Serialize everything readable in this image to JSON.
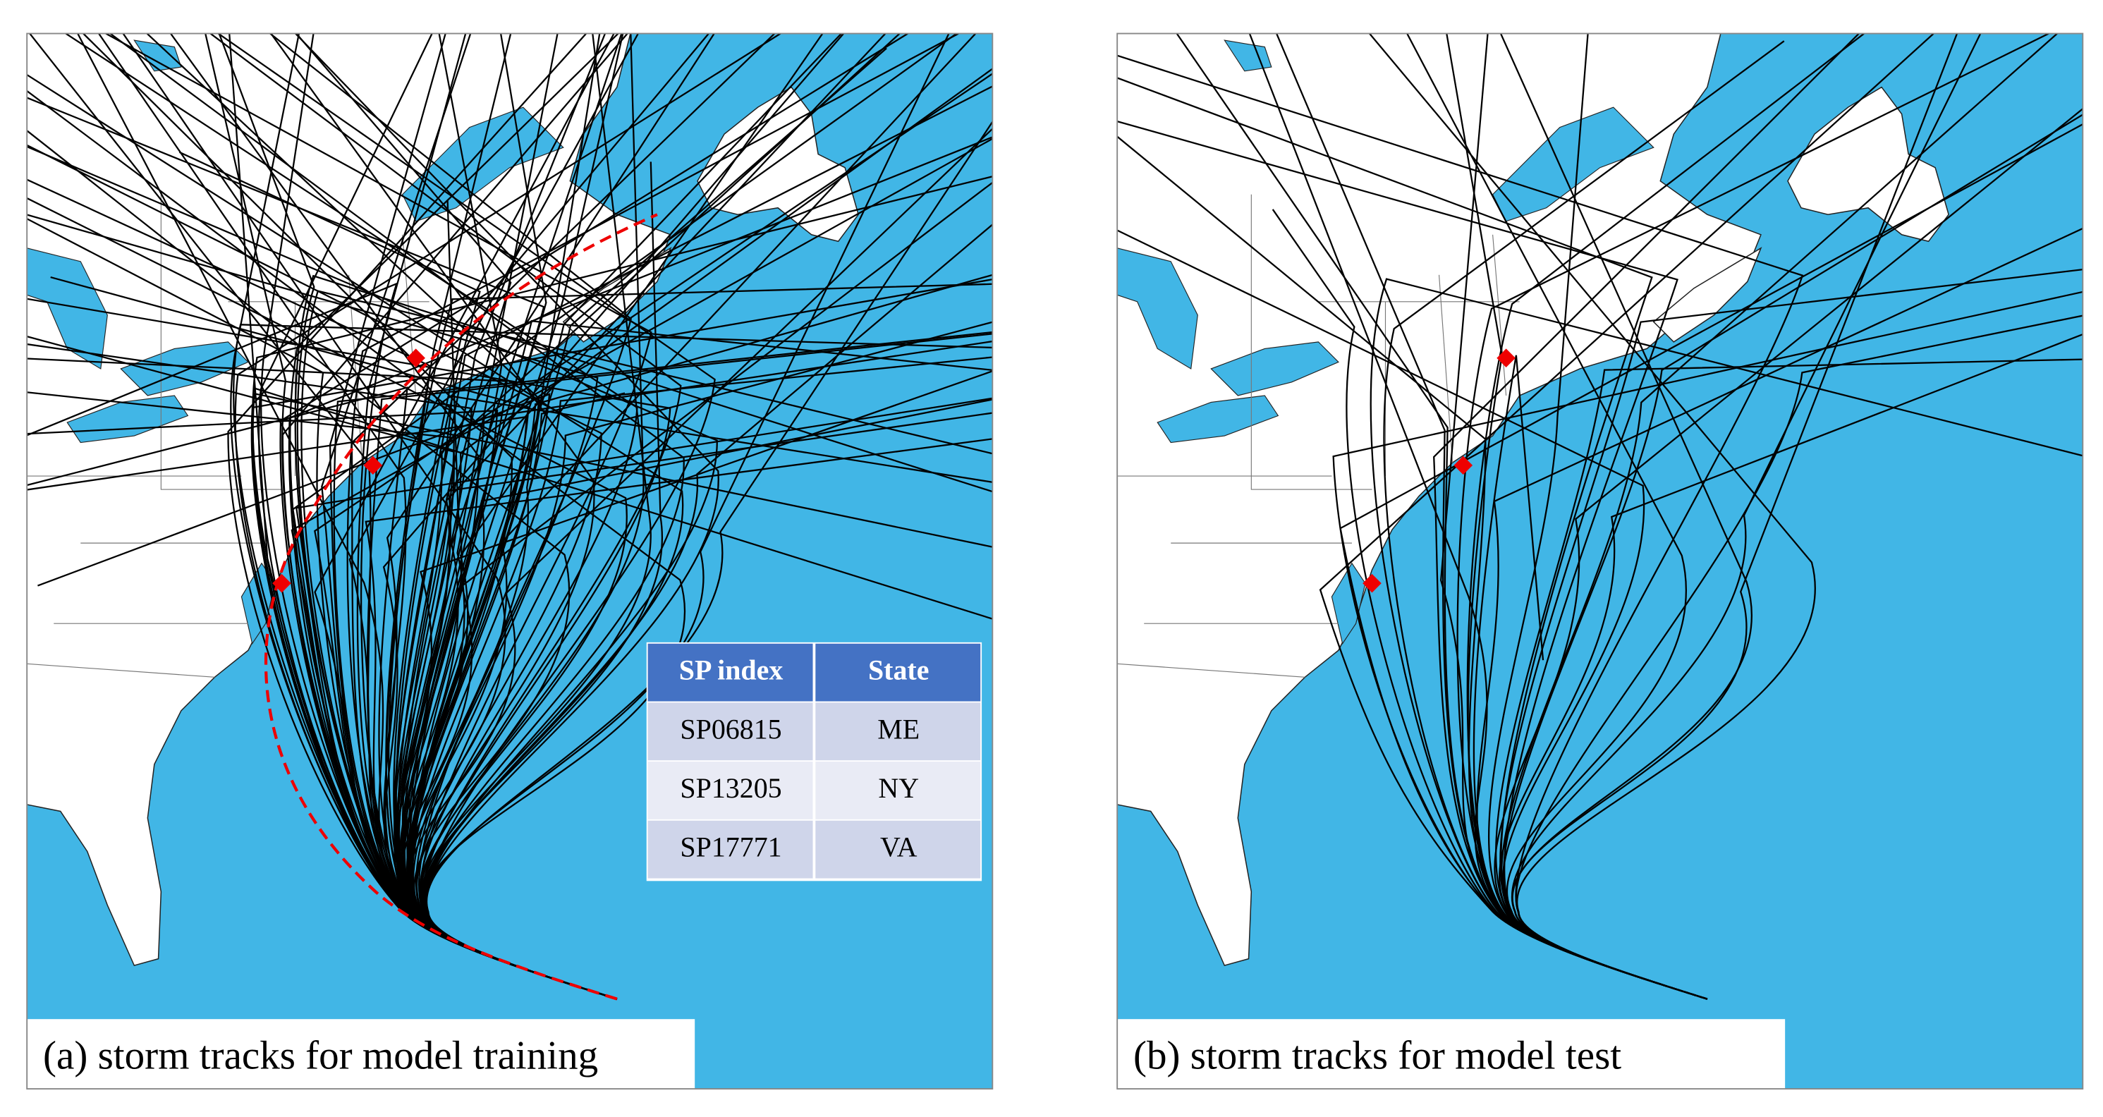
{
  "panels": [
    {
      "caption": "(a) storm tracks for model training"
    },
    {
      "caption": "(b) storm tracks for model test"
    }
  ],
  "table": {
    "header": [
      "SP index",
      "State"
    ],
    "rows": [
      [
        "SP06815",
        "ME"
      ],
      [
        "SP13205",
        "NY"
      ],
      [
        "SP17771",
        "VA"
      ]
    ]
  }
}
